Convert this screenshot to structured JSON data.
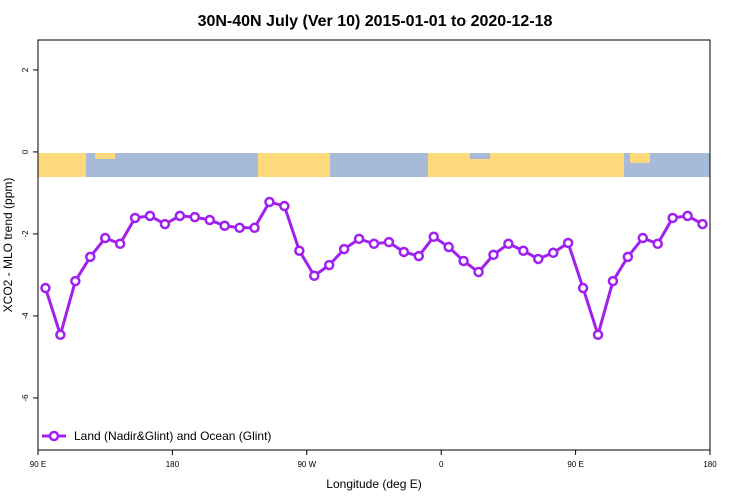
{
  "chart_data": {
    "type": "line",
    "title": "30N-40N July (Ver 10)   2015-01-01 to 2020-12-18",
    "x_label": "Longitude (deg E)",
    "y_label": "XCO2 - MLO trend (ppm)",
    "xlim": [
      90,
      540
    ],
    "ylim": [
      -7.27,
      2.73
    ],
    "xticks": [
      {
        "value": 90,
        "label": "90 E"
      },
      180,
      {
        "value": 270,
        "label": "90 W"
      },
      {
        "value": 360,
        "label": "0"
      },
      {
        "value": 450,
        "label": "90 E"
      },
      {
        "value": 540,
        "label": "180"
      }
    ],
    "yticks": [
      -6,
      -4,
      -2,
      0,
      2
    ],
    "legend": "bottom-left",
    "x": [
      95,
      105,
      115,
      125,
      135,
      145,
      155,
      165,
      175,
      185,
      195,
      205,
      215,
      225,
      235,
      245,
      255,
      265,
      275,
      285,
      295,
      305,
      315,
      325,
      335,
      345,
      355,
      365,
      375,
      385,
      395,
      405,
      415,
      425,
      435,
      445,
      455,
      465,
      475,
      485,
      495,
      505,
      515,
      525,
      535
    ],
    "series": [
      {
        "name": "Land (Nadir&Glint) and Ocean (Glint)",
        "color": "#a020f0",
        "values": [
          -3.32,
          -4.46,
          -3.15,
          -2.56,
          -2.1,
          -2.24,
          -1.61,
          -1.56,
          -1.76,
          -1.56,
          -1.59,
          -1.66,
          -1.8,
          -1.85,
          -1.85,
          -1.22,
          -1.32,
          -2.41,
          -3.02,
          -2.76,
          -2.37,
          -2.12,
          -2.24,
          -2.2,
          -2.44,
          -2.54,
          -2.07,
          -2.32,
          -2.66,
          -2.93,
          -2.51,
          -2.24,
          -2.41,
          -2.61,
          -2.46,
          -2.22,
          -3.32,
          -4.46,
          -3.15,
          -2.56,
          -2.1,
          -2.24,
          -1.61,
          -1.56,
          -1.76
        ]
      }
    ]
  }
}
